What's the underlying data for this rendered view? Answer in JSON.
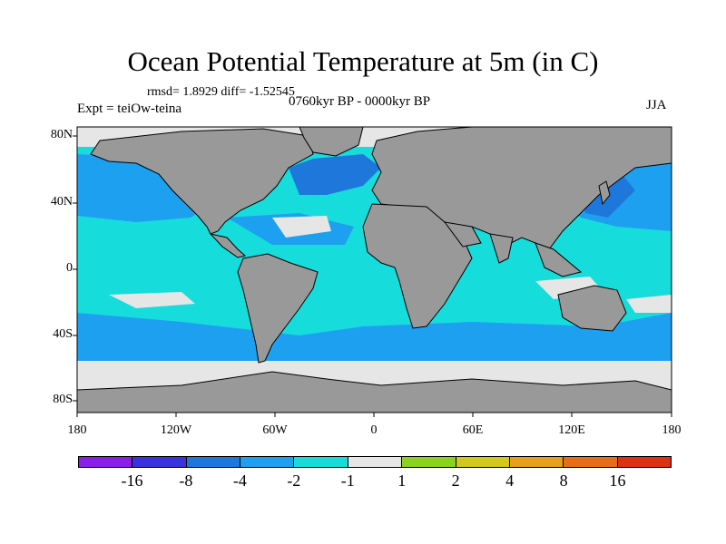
{
  "figure": {
    "title": "Ocean Potential Temperature at 5m (in C)",
    "stats": "rmsd= 1.8929 diff= -1.52545",
    "experiment": "Expt = teiOw-teina",
    "period": "0760kyr BP - 0000kyr BP",
    "season": "JJA"
  },
  "axes": {
    "y_ticks": [
      "80N",
      "40N",
      "0",
      "40S",
      "80S"
    ],
    "x_ticks": [
      "180",
      "120W",
      "60W",
      "0",
      "60E",
      "120E",
      "180"
    ]
  },
  "colors": {
    "land": "#999999",
    "background_ocean": "#17dcdc"
  },
  "colorbar": {
    "colors": [
      "#8a1ee8",
      "#3a32dc",
      "#1e78dc",
      "#1ea0f0",
      "#19dcd8",
      "#e6e6e6",
      "#8ad21e",
      "#d2c81e",
      "#e6a01e",
      "#e66e19",
      "#dc3214"
    ],
    "labels": [
      "-16",
      "-8",
      "-4",
      "-2",
      "-1",
      "1",
      "2",
      "4",
      "8",
      "16"
    ]
  },
  "map_legend": {
    "ocean_anomaly_classes": "contour-fill of temperature difference"
  }
}
